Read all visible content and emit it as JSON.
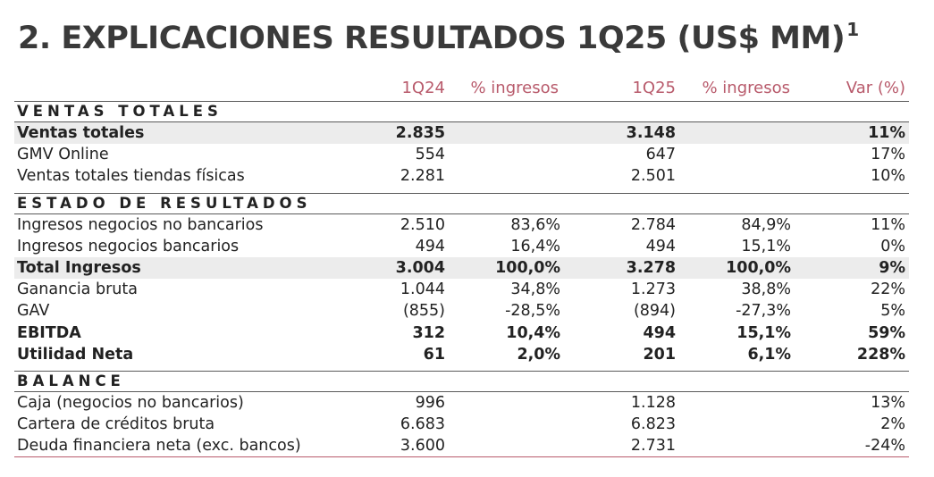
{
  "title": {
    "text": "2. EXPLICACIONES RESULTADOS 1Q25 (US$ MM)",
    "footnote": "1"
  },
  "columns": {
    "q24": "1Q24",
    "pct24": "% ingresos",
    "q25": "1Q25",
    "pct25": "% ingresos",
    "var": "Var (%)"
  },
  "sections": {
    "ventas": "VENTAS TOTALES",
    "estado": "ESTADO DE RESULTADOS",
    "balance": "BALANCE"
  },
  "ventas_rows": [
    {
      "label": "Ventas totales",
      "q24": "2.835",
      "pct24": "",
      "q25": "3.148",
      "pct25": "",
      "var": "11%"
    },
    {
      "label": "GMV Online",
      "q24": "554",
      "pct24": "",
      "q25": "647",
      "pct25": "",
      "var": "17%"
    },
    {
      "label": "Ventas totales tiendas físicas",
      "q24": "2.281",
      "pct24": "",
      "q25": "2.501",
      "pct25": "",
      "var": "10%"
    }
  ],
  "estado_rows": [
    {
      "label": "Ingresos negocios no bancarios",
      "q24": "2.510",
      "pct24": "83,6%",
      "q25": "2.784",
      "pct25": "84,9%",
      "var": "11%"
    },
    {
      "label": "Ingresos negocios bancarios",
      "q24": "494",
      "pct24": "16,4%",
      "q25": "494",
      "pct25": "15,1%",
      "var": "0%"
    },
    {
      "label": "Total Ingresos",
      "q24": "3.004",
      "pct24": "100,0%",
      "q25": "3.278",
      "pct25": "100,0%",
      "var": "9%"
    },
    {
      "label": "Ganancia bruta",
      "q24": "1.044",
      "pct24": "34,8%",
      "q25": "1.273",
      "pct25": "38,8%",
      "var": "22%"
    },
    {
      "label": "GAV",
      "q24": "(855)",
      "pct24": "-28,5%",
      "q25": "(894)",
      "pct25": "-27,3%",
      "var": "5%"
    },
    {
      "label": "EBITDA",
      "q24": "312",
      "pct24": "10,4%",
      "q25": "494",
      "pct25": "15,1%",
      "var": "59%"
    },
    {
      "label": "Utilidad Neta",
      "q24": "61",
      "pct24": "2,0%",
      "q25": "201",
      "pct25": "6,1%",
      "var": "228%"
    }
  ],
  "balance_rows": [
    {
      "label": "Caja (negocios no bancarios)",
      "q24": "996",
      "pct24": "",
      "q25": "1.128",
      "pct25": "",
      "var": "13%"
    },
    {
      "label": "Cartera de créditos bruta",
      "q24": "6.683",
      "pct24": "",
      "q25": "6.823",
      "pct25": "",
      "var": "2%"
    },
    {
      "label": "Deuda financiera neta (exc. bancos)",
      "q24": "3.600",
      "pct24": "",
      "q25": "2.731",
      "pct25": "",
      "var": "-24%"
    }
  ]
}
